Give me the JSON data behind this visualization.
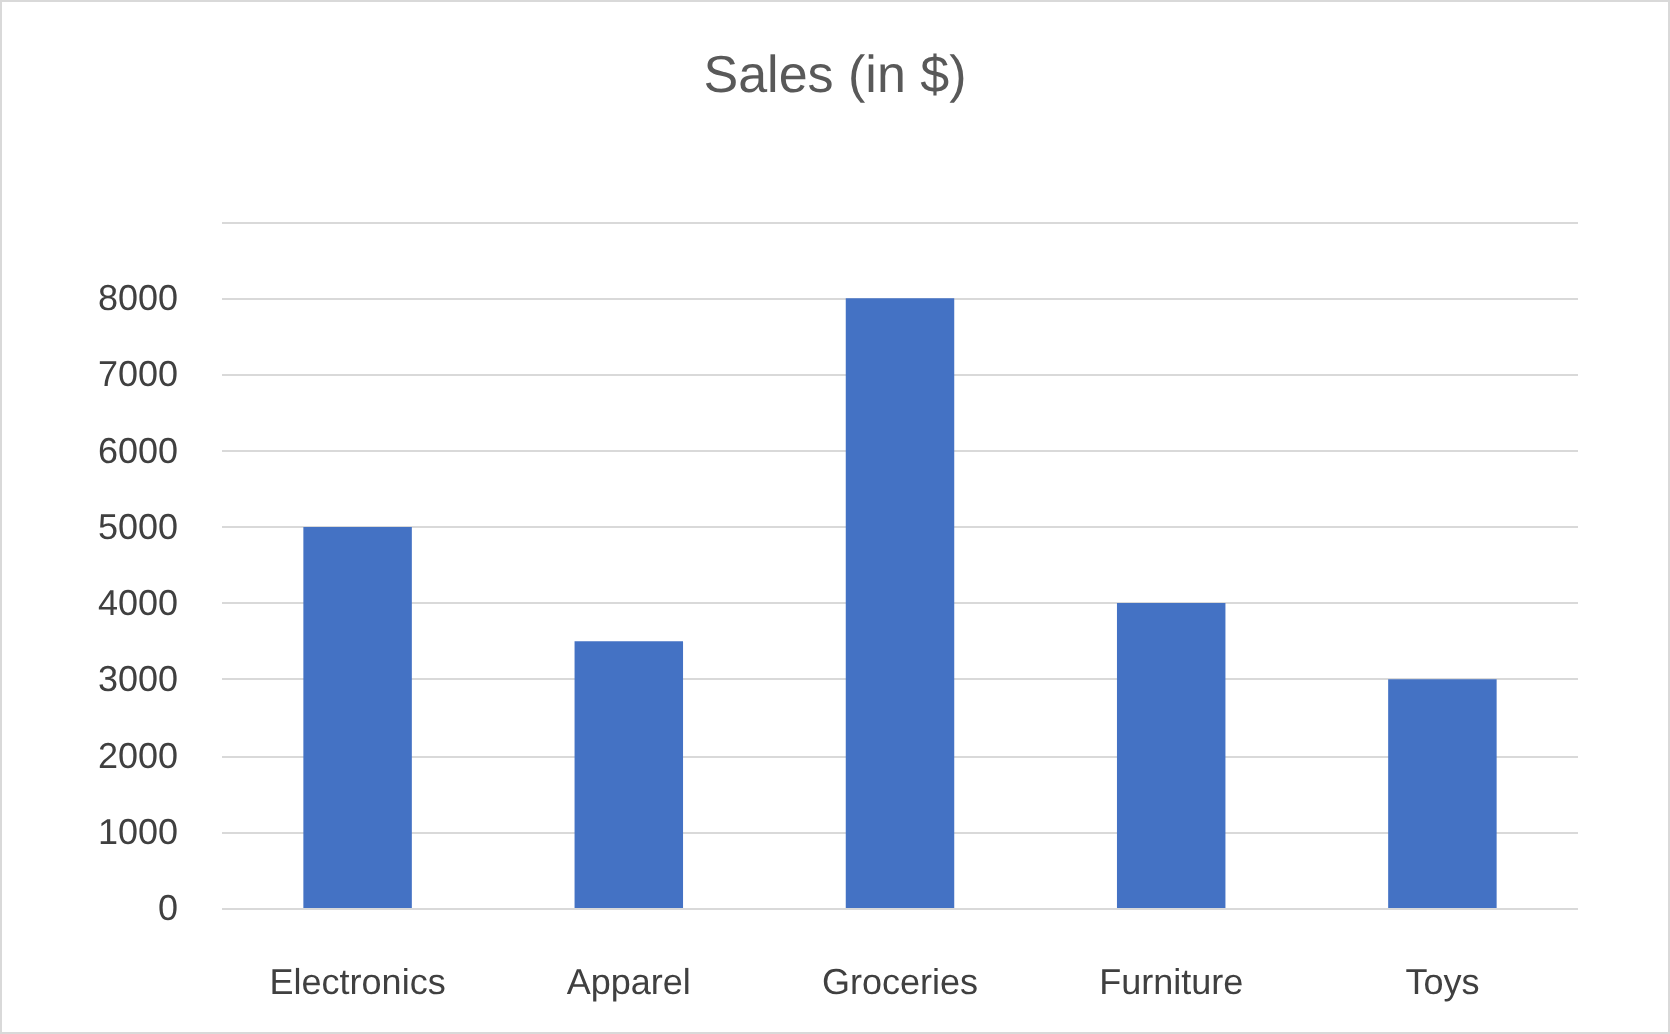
{
  "chart_data": {
    "type": "bar",
    "title": "Sales (in $)",
    "categories": [
      "Electronics",
      "Apparel",
      "Groceries",
      "Furniture",
      "Toys"
    ],
    "values": [
      5000,
      3500,
      8000,
      4000,
      3000
    ],
    "color": "#4472c4",
    "ylim": [
      0,
      9000
    ],
    "yticks": [
      0,
      1000,
      2000,
      3000,
      4000,
      5000,
      6000,
      7000,
      8000,
      {
        "value": 9000,
        "label": null
      }
    ],
    "grid": true
  }
}
